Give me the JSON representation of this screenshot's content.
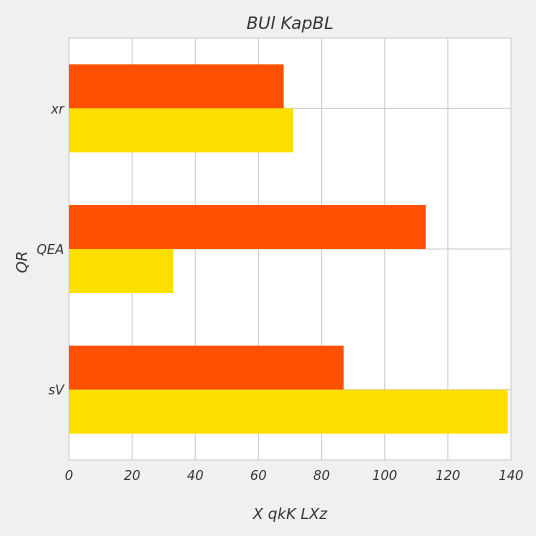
{
  "chart_data": {
    "type": "bar",
    "orientation": "horizontal",
    "title": "BUl KapBL",
    "xlabel": "X  qkK LXz",
    "ylabel": "QR",
    "categories": [
      "sV",
      "QEA",
      "xr"
    ],
    "series": [
      {
        "values": [
          87,
          113,
          68
        ],
        "color": "#ff4f00"
      },
      {
        "values": [
          139,
          33,
          71
        ],
        "color": "#ffdf00"
      }
    ],
    "xlim": [
      0,
      140
    ],
    "xticks": [
      0,
      20,
      40,
      60,
      80,
      100,
      120,
      140
    ],
    "grid": true
  },
  "colors": {
    "background": "#f0f0f0",
    "plot_background": "#ffffff",
    "grid": "#cbcbcb",
    "text": "#333333"
  }
}
